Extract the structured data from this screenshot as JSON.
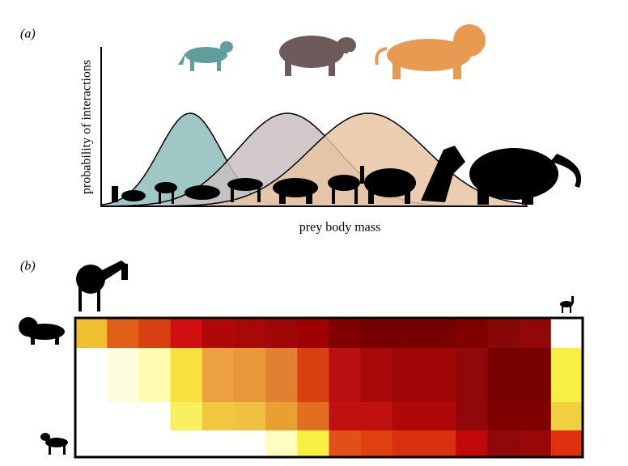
{
  "panel_a": {
    "label": "(a)",
    "y_axis_label": "probability of interactions",
    "x_axis_label": "prey body mass"
  },
  "panel_b": {
    "label": "(b)",
    "heatmap": {
      "rows": [
        [
          "#f0c030",
          "#e06018",
          "#d84010",
          "#d01010",
          "#b00808",
          "#a80808",
          "#a00808",
          "#a00000",
          "#800000",
          "#780000",
          "#780000",
          "#780000",
          "#800000",
          "#880808",
          "#900808",
          "#ffffff"
        ],
        [
          "#ffffff",
          "#fffde0",
          "#fffbb0",
          "#f8e040",
          "#eca040",
          "#e89838",
          "#e08030",
          "#d84010",
          "#b81010",
          "#a80808",
          "#a00808",
          "#a00808",
          "#900808",
          "#780000",
          "#780000",
          "#f8f040"
        ],
        [
          "#ffffff",
          "#ffffff",
          "#ffffff",
          "#f8f060",
          "#f0c840",
          "#f0c040",
          "#e8a030",
          "#e07020",
          "#c01010",
          "#c01010",
          "#b00808",
          "#b00808",
          "#900808",
          "#800000",
          "#800000",
          "#f0d040"
        ],
        [
          "#ffffff",
          "#ffffff",
          "#ffffff",
          "#ffffff",
          "#ffffff",
          "#ffffff",
          "#fffcc0",
          "#f8f040",
          "#e05018",
          "#e04010",
          "#d83010",
          "#d83010",
          "#c00808",
          "#900808",
          "#980808",
          "#e03010"
        ]
      ]
    }
  }
}
